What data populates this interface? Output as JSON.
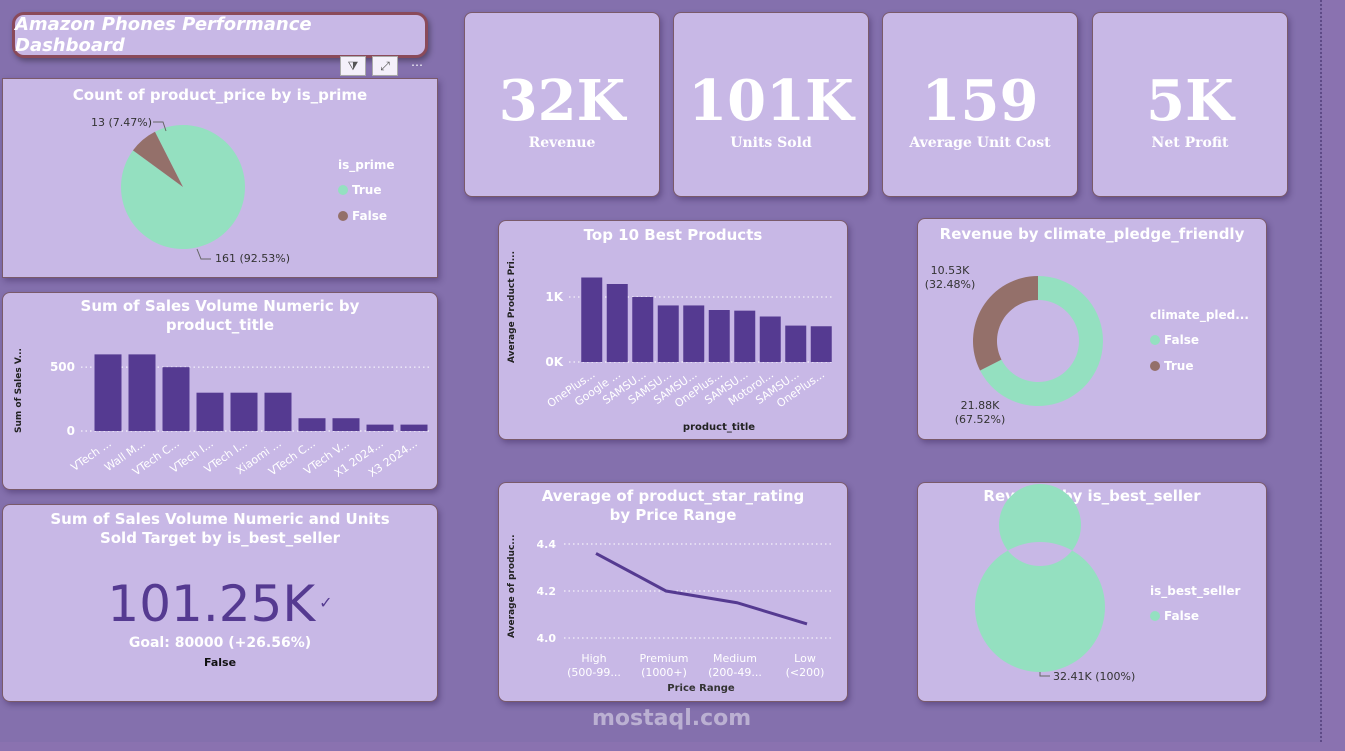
{
  "header": {
    "title": "Amazon Phones Performance Dashboard"
  },
  "toolbar": {
    "filter_icon": "filter-icon",
    "focus_icon": "focus-mode-icon",
    "more_icon": "more-options-icon"
  },
  "kpis": [
    {
      "value": "32K",
      "label": "Revenue"
    },
    {
      "value": "101K",
      "label": "Units Sold"
    },
    {
      "value": "159",
      "label": "Average Unit Cost"
    },
    {
      "value": "5K",
      "label": "Net Profit"
    }
  ],
  "colors": {
    "accent": "#553a91",
    "green": "#94e0c0",
    "brown": "#94706a",
    "panel": "#c8b8e6"
  },
  "chart_data": [
    {
      "type": "pie",
      "title": "Count of product_price by is_prime",
      "legend_title": "is_prime",
      "legend_position": "right",
      "slices": [
        {
          "name": "True",
          "value": 161,
          "label": "161 (92.53%)"
        },
        {
          "name": "False",
          "value": 13,
          "label": "13 (7.47%)"
        }
      ]
    },
    {
      "type": "bar",
      "title": "Sum of Sales Volume Numeric by product_title",
      "ylabel": "Sum of Sales V...",
      "xlabel": "",
      "yticks": [
        "0",
        "500"
      ],
      "ylim": [
        0,
        650
      ],
      "grid": true,
      "categories": [
        "VTech ...",
        "Wall M...",
        "VTech C...",
        "VTech I...",
        "VTech I...",
        "Xiaomi ...",
        "VTech C...",
        "VTech V...",
        "X1 2024...",
        "X3 2024..."
      ],
      "values": [
        600,
        600,
        500,
        300,
        300,
        300,
        100,
        100,
        50,
        50
      ]
    },
    {
      "type": "kpi",
      "title": "Sum of Sales Volume Numeric and Units Sold Target by is_best_seller",
      "value": "101.25K",
      "goal": "Goal: 80000 (+26.56%)",
      "category": "False"
    },
    {
      "type": "bar",
      "title": "Top 10 Best Products",
      "ylabel": "Average Product Pri...",
      "xlabel": "product_title",
      "yticks": [
        "0K",
        "1K"
      ],
      "ylim": [
        0,
        1400
      ],
      "grid": true,
      "categories": [
        "OnePlus...",
        "Google ...",
        "SAMSU...",
        "SAMSU...",
        "SAMSU...",
        "OnePlus...",
        "SAMSU...",
        "Motorol...",
        "SAMSU...",
        "OnePlus..."
      ],
      "values": [
        1300,
        1200,
        1000,
        870,
        870,
        800,
        790,
        700,
        560,
        550
      ]
    },
    {
      "type": "line",
      "title": "Average of product_star_rating by Price Range",
      "ylabel": "Average of produc...",
      "xlabel": "Price Range",
      "yticks": [
        "4.0",
        "4.2",
        "4.4"
      ],
      "ylim": [
        4.0,
        4.4
      ],
      "grid": true,
      "categories": [
        [
          "High",
          "(500-99..."
        ],
        [
          "Premium",
          "(1000+)"
        ],
        [
          "Medium",
          "(200-49..."
        ],
        [
          "Low",
          "(<200)"
        ]
      ],
      "values": [
        4.36,
        4.2,
        4.15,
        4.06
      ]
    },
    {
      "type": "pie",
      "donut": true,
      "title": "Revenue by climate_pledge_friendly",
      "legend_title": "climate_pled...",
      "legend_position": "right",
      "slices": [
        {
          "name": "False",
          "value": 21.88,
          "label": [
            "21.88K",
            "(67.52%)"
          ]
        },
        {
          "name": "True",
          "value": 10.53,
          "label": [
            "10.53K",
            "(32.48%)"
          ]
        }
      ]
    },
    {
      "type": "pie",
      "donut": true,
      "title": "Revenue by is_best_seller",
      "legend_title": "is_best_seller",
      "legend_position": "right",
      "slices": [
        {
          "name": "False",
          "value": 32.41,
          "label": "32.41K (100%)"
        }
      ]
    }
  ],
  "watermark": "mostaql.com"
}
